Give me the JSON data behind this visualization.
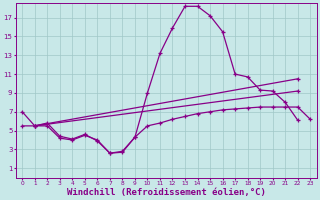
{
  "background_color": "#c8e8e8",
  "grid_color": "#a0c8c8",
  "line_color": "#880088",
  "marker": "+",
  "xlabel": "Windchill (Refroidissement éolien,°C)",
  "xlabel_fontsize": 6.5,
  "xtick_labels": [
    "0",
    "1",
    "2",
    "3",
    "4",
    "5",
    "6",
    "7",
    "8",
    "9",
    "10",
    "11",
    "12",
    "13",
    "14",
    "15",
    "16",
    "17",
    "18",
    "19",
    "20",
    "21",
    "22",
    "23"
  ],
  "ytick_labels": [
    "1",
    "3",
    "5",
    "7",
    "9",
    "11",
    "13",
    "15",
    "17"
  ],
  "xlim": [
    -0.5,
    23.5
  ],
  "ylim": [
    0,
    18.5
  ],
  "series1_x": [
    0,
    1,
    2,
    3,
    4,
    5,
    6,
    7,
    8,
    9,
    10,
    11,
    12,
    13,
    14,
    15,
    16,
    17,
    18,
    19,
    20,
    21,
    22
  ],
  "series1_y": [
    7.0,
    5.5,
    5.8,
    4.4,
    4.1,
    4.6,
    3.9,
    2.6,
    2.7,
    4.3,
    9.0,
    13.2,
    15.9,
    18.2,
    18.2,
    17.2,
    15.5,
    11.0,
    10.7,
    9.3,
    9.2,
    8.0,
    6.1
  ],
  "series2_x": [
    0,
    1,
    2,
    3,
    4,
    5,
    6,
    7,
    8,
    9,
    10,
    11,
    12,
    13,
    14,
    15,
    16,
    17,
    18,
    19,
    20,
    21,
    22,
    23
  ],
  "series2_y": [
    5.5,
    5.5,
    5.5,
    4.2,
    4.0,
    4.5,
    4.0,
    2.6,
    2.8,
    4.3,
    5.5,
    5.8,
    6.2,
    6.5,
    6.8,
    7.0,
    7.2,
    7.3,
    7.4,
    7.5,
    7.5,
    7.5,
    7.5,
    6.2
  ],
  "series3_x": [
    1,
    22
  ],
  "series3_y": [
    5.5,
    10.5
  ],
  "series4_x": [
    1,
    22
  ],
  "series4_y": [
    5.5,
    9.2
  ]
}
